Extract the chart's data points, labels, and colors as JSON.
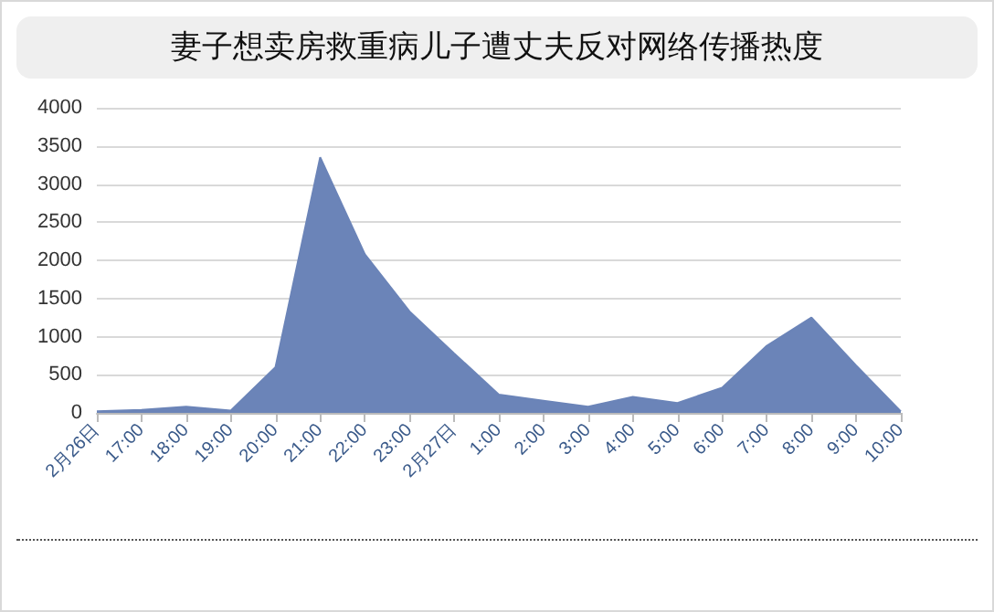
{
  "chart_data": {
    "type": "area",
    "title": "妻子想卖房救重病儿子遭丈夫反对网络传播热度",
    "categories": [
      "2月26日",
      "17:00",
      "18:00",
      "19:00",
      "20:00",
      "21:00",
      "22:00",
      "23:00",
      "2月27日",
      "1:00",
      "2:00",
      "3:00",
      "4:00",
      "5:00",
      "6:00",
      "7:00",
      "8:00",
      "9:00",
      "10:00"
    ],
    "values": [
      20,
      40,
      80,
      30,
      600,
      3350,
      2080,
      1330,
      780,
      240,
      160,
      80,
      210,
      130,
      330,
      880,
      1250,
      620,
      20
    ],
    "color": "#6b84b8",
    "ylim": [
      0,
      4000
    ],
    "yticks": [
      0,
      500,
      1000,
      1500,
      2000,
      2500,
      3000,
      3500,
      4000
    ],
    "grid": "y",
    "marker": "none"
  }
}
